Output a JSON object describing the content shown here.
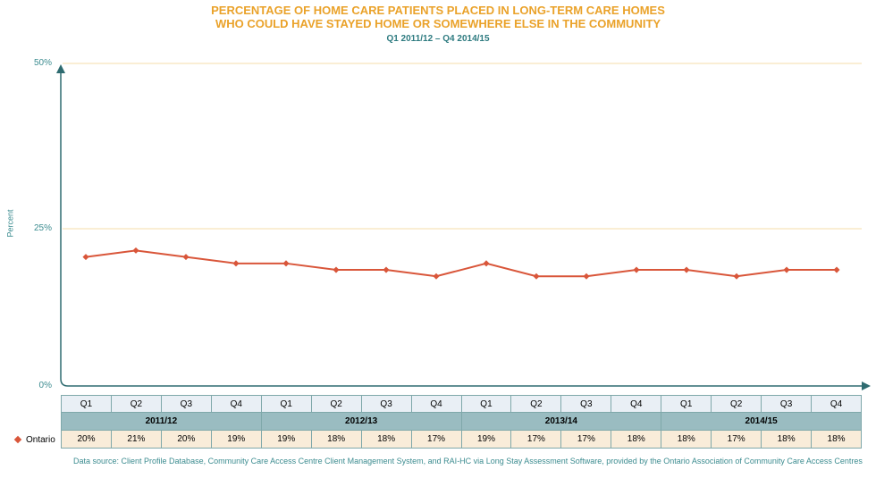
{
  "chart_data": {
    "type": "line",
    "title": [
      "PERCENTAGE OF HOME CARE PATIENTS PLACED IN LONG-TERM CARE HOMES",
      "WHO COULD HAVE STAYED HOME OR SOMEWHERE ELSE IN THE COMMUNITY"
    ],
    "subtitle": "Q1 2011/12 – Q4 2014/15",
    "ylabel": "Percent",
    "ylim": [
      0,
      50
    ],
    "yticks": [
      "0%",
      "25%",
      "50%"
    ],
    "grid": true,
    "legend_position": "bottom-left",
    "quarters": [
      "Q1",
      "Q2",
      "Q3",
      "Q4",
      "Q1",
      "Q2",
      "Q3",
      "Q4",
      "Q1",
      "Q2",
      "Q3",
      "Q4",
      "Q1",
      "Q2",
      "Q3",
      "Q4"
    ],
    "years": [
      "2011/12",
      "2012/13",
      "2013/14",
      "2014/15"
    ],
    "series": [
      {
        "name": "Ontario",
        "color": "#d9563a",
        "values": [
          20,
          21,
          20,
          19,
          19,
          18,
          18,
          17,
          19,
          17,
          17,
          18,
          18,
          17,
          18,
          18
        ],
        "labels": [
          "20%",
          "21%",
          "20%",
          "19%",
          "19%",
          "18%",
          "18%",
          "17%",
          "19%",
          "17%",
          "17%",
          "18%",
          "18%",
          "17%",
          "18%",
          "18%"
        ]
      }
    ],
    "source": "Data source: Client Profile Database, Community Care Access Centre Client Management System, and RAI-HC via Long Stay Assessment Software, provided by the Ontario Association of Community Care Access Centres"
  }
}
